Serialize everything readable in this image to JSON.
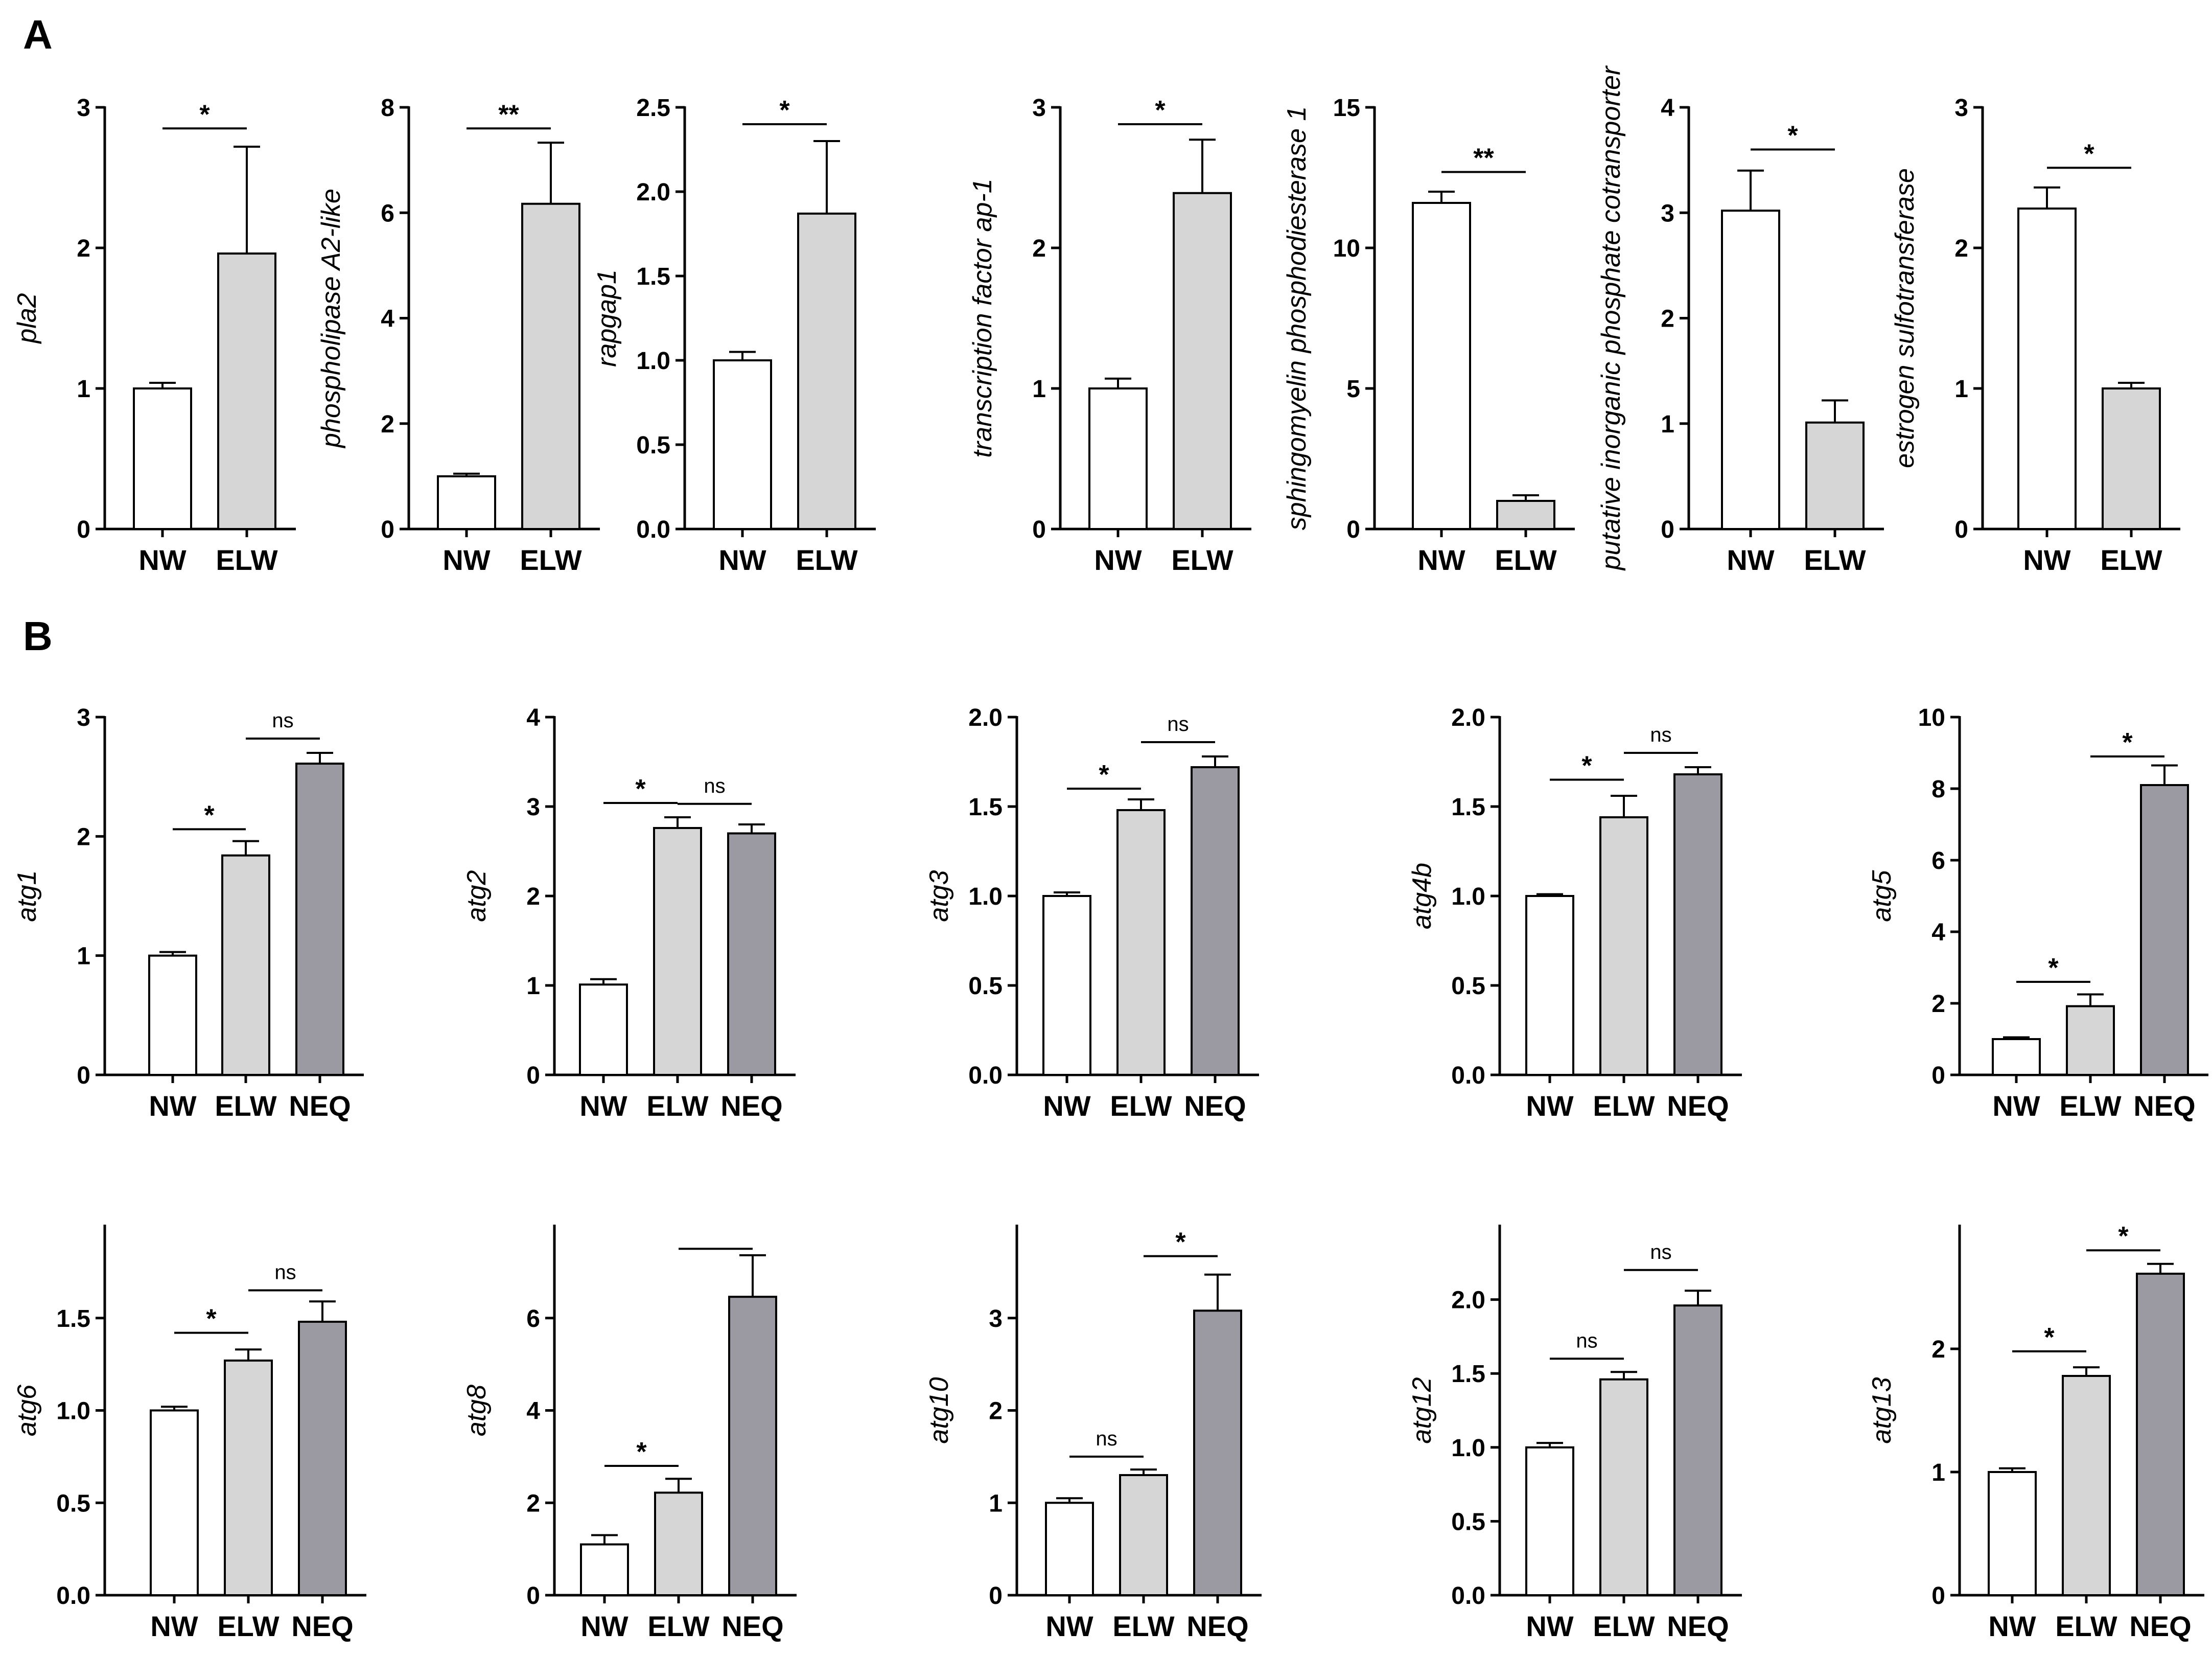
{
  "figure": {
    "panel_labels": [
      "A",
      "B"
    ]
  },
  "colors": {
    "NW": "#ffffff",
    "ELW": "#d6d6d6",
    "NEQ": "#9b9aa2",
    "stroke": "#000000"
  },
  "chart_data": [
    {
      "panel": "A",
      "type": "bar",
      "ylabel": "pla2",
      "categories": [
        "NW",
        "ELW"
      ],
      "values": [
        1.0,
        1.96
      ],
      "errors": [
        0.04,
        0.76
      ],
      "ylim": [
        0,
        3
      ],
      "yticks": [
        "0",
        "1",
        "2",
        "3"
      ],
      "significance": [
        {
          "from": 0,
          "to": 1,
          "label": "*",
          "level": 2.85
        }
      ]
    },
    {
      "panel": "A",
      "type": "bar",
      "ylabel": "phospholipase A2-like",
      "categories": [
        "NW",
        "ELW"
      ],
      "values": [
        1.0,
        6.17
      ],
      "errors": [
        0.05,
        1.16
      ],
      "ylim": [
        0,
        8
      ],
      "yticks": [
        "0",
        "2",
        "4",
        "6",
        "8"
      ],
      "significance": [
        {
          "from": 0,
          "to": 1,
          "label": "**",
          "level": 7.6
        }
      ]
    },
    {
      "panel": "A",
      "type": "bar",
      "ylabel": "rapgap1",
      "categories": [
        "NW",
        "ELW"
      ],
      "values": [
        1.0,
        1.87
      ],
      "errors": [
        0.05,
        0.43
      ],
      "ylim": [
        0,
        2.5
      ],
      "yticks": [
        "0.0",
        "0.5",
        "1.0",
        "1.5",
        "2.0",
        "2.5"
      ],
      "significance": [
        {
          "from": 0,
          "to": 1,
          "label": "*",
          "level": 2.4
        }
      ]
    },
    {
      "panel": "A",
      "type": "bar",
      "ylabel": "transcription factor ap-1",
      "categories": [
        "NW",
        "ELW"
      ],
      "values": [
        1.0,
        2.39
      ],
      "errors": [
        0.07,
        0.38
      ],
      "ylim": [
        0,
        3
      ],
      "yticks": [
        "0",
        "1",
        "2",
        "3"
      ],
      "significance": [
        {
          "from": 0,
          "to": 1,
          "label": "*",
          "level": 2.88
        }
      ]
    },
    {
      "panel": "A",
      "type": "bar",
      "ylabel": "sphingomyelin phosphodiesterase 1",
      "categories": [
        "NW",
        "ELW"
      ],
      "values": [
        11.6,
        1.0
      ],
      "errors": [
        0.4,
        0.2
      ],
      "ylim": [
        0,
        15
      ],
      "yticks": [
        "0",
        "5",
        "10",
        "15"
      ],
      "significance": [
        {
          "from": 0,
          "to": 1,
          "label": "**",
          "level": 12.7
        }
      ]
    },
    {
      "panel": "A",
      "type": "bar",
      "ylabel": "putative inorganic phosphate cotransporter",
      "categories": [
        "NW",
        "ELW"
      ],
      "values": [
        3.02,
        1.01
      ],
      "errors": [
        0.38,
        0.21
      ],
      "ylim": [
        0,
        4
      ],
      "yticks": [
        "0",
        "1",
        "2",
        "3",
        "4"
      ],
      "significance": [
        {
          "from": 0,
          "to": 1,
          "label": "*",
          "level": 3.6
        }
      ]
    },
    {
      "panel": "A",
      "type": "bar",
      "ylabel": "estrogen sulfotransferase",
      "categories": [
        "NW",
        "ELW"
      ],
      "values": [
        2.28,
        1.0
      ],
      "errors": [
        0.15,
        0.04
      ],
      "ylim": [
        0,
        3
      ],
      "yticks": [
        "0",
        "1",
        "2",
        "3"
      ],
      "significance": [
        {
          "from": 0,
          "to": 1,
          "label": "*",
          "level": 2.57
        }
      ]
    },
    {
      "panel": "B",
      "type": "bar",
      "ylabel": "atg1",
      "categories": [
        "NW",
        "ELW",
        "NEQ"
      ],
      "values": [
        1.0,
        1.84,
        2.61
      ],
      "errors": [
        0.03,
        0.12,
        0.09
      ],
      "ylim": [
        0,
        3
      ],
      "yticks": [
        "0",
        "1",
        "2",
        "3"
      ],
      "significance": [
        {
          "from": 0,
          "to": 1,
          "label": "*",
          "level": 2.06
        },
        {
          "from": 1,
          "to": 2,
          "label": "ns",
          "level": 2.82
        }
      ]
    },
    {
      "panel": "B",
      "type": "bar",
      "ylabel": "atg2",
      "categories": [
        "NW",
        "ELW",
        "NEQ"
      ],
      "values": [
        1.01,
        2.76,
        2.7
      ],
      "errors": [
        0.06,
        0.12,
        0.1
      ],
      "ylim": [
        0,
        4
      ],
      "yticks": [
        "0",
        "1",
        "2",
        "3",
        "4"
      ],
      "significance": [
        {
          "from": 0,
          "to": 1,
          "label": "*",
          "level": 3.04
        },
        {
          "from": 1,
          "to": 2,
          "label": "ns",
          "level": 3.03
        }
      ]
    },
    {
      "panel": "B",
      "type": "bar",
      "ylabel": "atg3",
      "categories": [
        "NW",
        "ELW",
        "NEQ"
      ],
      "values": [
        1.0,
        1.48,
        1.72
      ],
      "errors": [
        0.02,
        0.06,
        0.06
      ],
      "ylim": [
        0,
        2.0
      ],
      "yticks": [
        "0.0",
        "0.5",
        "1.0",
        "1.5",
        "2.0"
      ],
      "significance": [
        {
          "from": 0,
          "to": 1,
          "label": "*",
          "level": 1.6
        },
        {
          "from": 1,
          "to": 2,
          "label": "ns",
          "level": 1.86
        }
      ]
    },
    {
      "panel": "B",
      "type": "bar",
      "ylabel": "atg4b",
      "categories": [
        "NW",
        "ELW",
        "NEQ"
      ],
      "values": [
        1.0,
        1.44,
        1.68
      ],
      "errors": [
        0.01,
        0.12,
        0.04
      ],
      "ylim": [
        0,
        2.0
      ],
      "yticks": [
        "0.0",
        "0.5",
        "1.0",
        "1.5",
        "2.0"
      ],
      "significance": [
        {
          "from": 0,
          "to": 1,
          "label": "*",
          "level": 1.65
        },
        {
          "from": 1,
          "to": 2,
          "label": "ns",
          "level": 1.8
        }
      ]
    },
    {
      "panel": "B",
      "type": "bar",
      "ylabel": "atg5",
      "categories": [
        "NW",
        "ELW",
        "NEQ"
      ],
      "values": [
        1.0,
        1.92,
        8.1
      ],
      "errors": [
        0.05,
        0.33,
        0.55
      ],
      "ylim": [
        0,
        10
      ],
      "yticks": [
        "0",
        "2",
        "4",
        "6",
        "8",
        "10"
      ],
      "significance": [
        {
          "from": 0,
          "to": 1,
          "label": "*",
          "level": 2.6
        },
        {
          "from": 1,
          "to": 2,
          "label": "*",
          "level": 8.9
        }
      ]
    },
    {
      "panel": "B",
      "type": "bar",
      "ylabel": "atg6",
      "categories": [
        "NW",
        "ELW",
        "NEQ"
      ],
      "values": [
        1.0,
        1.27,
        1.48
      ],
      "errors": [
        0.02,
        0.06,
        0.11
      ],
      "ylim": [
        0,
        2.0
      ],
      "yticks": [
        "0.0",
        "0.5",
        "1.0",
        "1.5"
      ],
      "significance": [
        {
          "from": 0,
          "to": 1,
          "label": "*",
          "level": 1.42
        },
        {
          "from": 1,
          "to": 2,
          "label": "ns",
          "level": 1.65
        }
      ]
    },
    {
      "panel": "B",
      "type": "bar",
      "ylabel": "atg8",
      "categories": [
        "NW",
        "ELW",
        "NEQ"
      ],
      "values": [
        1.1,
        2.22,
        6.46
      ],
      "errors": [
        0.2,
        0.3,
        0.9
      ],
      "ylim": [
        0,
        8
      ],
      "yticks": [
        "0",
        "2",
        "4",
        "6"
      ],
      "significance": [
        {
          "from": 0,
          "to": 1,
          "label": "*",
          "level": 2.8
        },
        {
          "from": 1,
          "to": 2,
          "label": "",
          "level": 7.5
        }
      ]
    },
    {
      "panel": "B",
      "type": "bar",
      "ylabel": "atg10",
      "categories": [
        "NW",
        "ELW",
        "NEQ"
      ],
      "values": [
        1.0,
        1.3,
        3.08
      ],
      "errors": [
        0.05,
        0.06,
        0.39
      ],
      "ylim": [
        0,
        4
      ],
      "yticks": [
        "0",
        "1",
        "2",
        "3"
      ],
      "significance": [
        {
          "from": 0,
          "to": 1,
          "label": "ns",
          "level": 1.5
        },
        {
          "from": 1,
          "to": 2,
          "label": "*",
          "level": 3.67
        }
      ]
    },
    {
      "panel": "B",
      "type": "bar",
      "ylabel": "atg12",
      "categories": [
        "NW",
        "ELW",
        "NEQ"
      ],
      "values": [
        1.0,
        1.46,
        1.96
      ],
      "errors": [
        0.03,
        0.05,
        0.1
      ],
      "ylim": [
        0,
        2.5
      ],
      "yticks": [
        "0.0",
        "0.5",
        "1.0",
        "1.5",
        "2.0"
      ],
      "significance": [
        {
          "from": 0,
          "to": 1,
          "label": "ns",
          "level": 1.6
        },
        {
          "from": 1,
          "to": 2,
          "label": "ns",
          "level": 2.2
        }
      ]
    },
    {
      "panel": "B",
      "type": "bar",
      "ylabel": "atg13",
      "categories": [
        "NW",
        "ELW",
        "NEQ"
      ],
      "values": [
        1.0,
        1.78,
        2.61
      ],
      "errors": [
        0.03,
        0.07,
        0.08
      ],
      "ylim": [
        0,
        3
      ],
      "yticks": [
        "0",
        "1",
        "2"
      ],
      "significance": [
        {
          "from": 0,
          "to": 1,
          "label": "*",
          "level": 1.98
        },
        {
          "from": 1,
          "to": 2,
          "label": "*",
          "level": 2.8
        }
      ]
    }
  ]
}
